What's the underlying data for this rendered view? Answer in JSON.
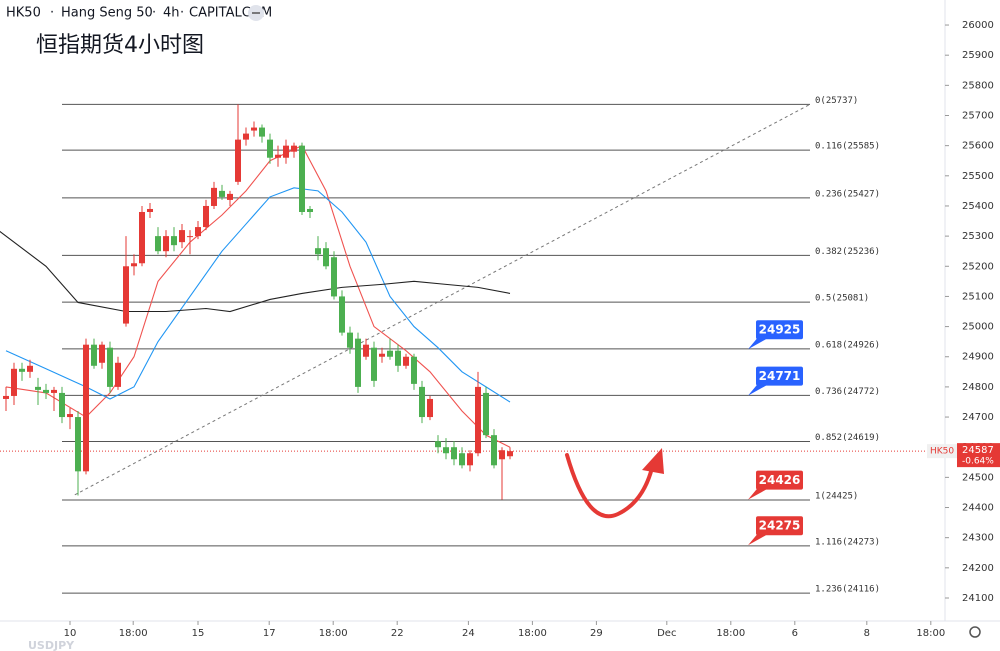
{
  "header": {
    "symbol": "HK50",
    "name": "Hang Seng 50",
    "interval": "4h",
    "source": "CAPITALCOM"
  },
  "chart_data": {
    "type": "candlestick",
    "title": "恒指期货4小时图",
    "watermark": "USDJPY",
    "up_color": "#e53935",
    "down_color": "#4caf50",
    "ylim": [
      24027,
      26083
    ],
    "yticks": [
      24100,
      24200,
      24300,
      24400,
      24500,
      24600,
      24700,
      24800,
      24900,
      25000,
      25100,
      25200,
      25300,
      25400,
      25500,
      25600,
      25700,
      25800,
      25900,
      26000
    ],
    "xlim": [
      -0.75,
      117.375
    ],
    "xticks": [
      {
        "value": 8,
        "label": "10"
      },
      {
        "value": 15.9,
        "label": "18:00"
      },
      {
        "value": 24,
        "label": "15"
      },
      {
        "value": 32.9,
        "label": "17"
      },
      {
        "value": 40.9,
        "label": "18:00"
      },
      {
        "value": 48.9,
        "label": "22"
      },
      {
        "value": 57.8,
        "label": "24"
      },
      {
        "value": 65.8,
        "label": "18:00"
      },
      {
        "value": 73.8,
        "label": "29"
      },
      {
        "value": 82.6,
        "label": "Dec"
      },
      {
        "value": 90.6,
        "label": "18:00"
      },
      {
        "value": 98.6,
        "label": "6"
      },
      {
        "value": 107.6,
        "label": "8"
      },
      {
        "value": 115.6,
        "label": "18:00"
      }
    ],
    "candles": {
      "x": [
        0,
        1,
        2,
        3,
        4,
        5,
        6,
        7,
        8,
        9,
        10,
        11,
        12,
        13,
        14,
        15,
        16,
        17,
        18,
        19,
        20,
        21,
        22,
        23,
        24,
        25,
        26,
        27,
        28,
        29,
        30,
        31,
        32,
        33,
        34,
        35,
        36,
        37,
        38,
        39,
        40,
        41,
        42,
        43,
        44,
        45,
        46,
        47,
        48,
        49,
        50,
        51,
        52,
        53,
        54,
        55,
        56,
        57,
        58,
        59,
        60,
        61,
        62,
        63
      ],
      "open": [
        24760,
        24770,
        24860,
        24850,
        24800,
        24790,
        24780,
        24780,
        24700,
        24700,
        24520,
        24940,
        24880,
        24930,
        24800,
        25010,
        25200,
        25210,
        25380,
        25300,
        25250,
        25300,
        25280,
        25300,
        25300,
        25330,
        25400,
        25450,
        25420,
        25480,
        25620,
        25650,
        25660,
        25620,
        25560,
        25560,
        25580,
        25600,
        25390,
        25260,
        25260,
        25230,
        25100,
        24980,
        24960,
        24900,
        24930,
        24900,
        24920,
        24920,
        24870,
        24900,
        24800,
        24700,
        24620,
        24600,
        24600,
        24580,
        24540,
        24580,
        24780,
        24640,
        24560,
        24570
      ],
      "high": [
        24800,
        24880,
        24880,
        24890,
        24830,
        24810,
        24800,
        24800,
        24730,
        24720,
        24960,
        24960,
        24950,
        24950,
        24900,
        25300,
        25240,
        25400,
        25410,
        25330,
        25320,
        25330,
        25340,
        25320,
        25350,
        25420,
        25480,
        25470,
        25450,
        25737,
        25660,
        25680,
        25670,
        25640,
        25600,
        25620,
        25610,
        25610,
        25400,
        25300,
        25280,
        25250,
        25120,
        25000,
        24980,
        24960,
        24950,
        24930,
        24960,
        24940,
        24910,
        24910,
        24820,
        24770,
        24640,
        24630,
        24620,
        24600,
        24590,
        24850,
        24800,
        24660,
        24600,
        24600
      ],
      "low": [
        24720,
        24740,
        24820,
        24830,
        24740,
        24760,
        24720,
        24680,
        24660,
        24440,
        24510,
        24860,
        24860,
        24780,
        24790,
        25000,
        25170,
        25200,
        25360,
        25240,
        25230,
        25250,
        25260,
        25240,
        25290,
        25320,
        25390,
        25420,
        25400,
        25470,
        25600,
        25630,
        25610,
        25540,
        25530,
        25540,
        25560,
        25370,
        25360,
        25220,
        25190,
        25090,
        24970,
        24910,
        24780,
        24890,
        24800,
        24880,
        24890,
        24850,
        24860,
        24790,
        24680,
        24690,
        24580,
        24560,
        24540,
        24530,
        24520,
        24570,
        24630,
        24530,
        24426,
        24560
      ],
      "close": [
        24770,
        24860,
        24850,
        24870,
        24790,
        24780,
        24790,
        24700,
        24710,
        24520,
        24940,
        24870,
        24940,
        24800,
        24880,
        25200,
        25210,
        25380,
        25390,
        25250,
        25300,
        25270,
        25320,
        25300,
        25330,
        25400,
        25460,
        25430,
        25440,
        25620,
        25640,
        25660,
        25630,
        25560,
        25570,
        25600,
        25600,
        25380,
        25380,
        25240,
        25200,
        25100,
        24980,
        24930,
        24800,
        24940,
        24820,
        24910,
        24900,
        24870,
        24900,
        24810,
        24700,
        24760,
        24600,
        24580,
        24560,
        24540,
        24580,
        24800,
        24640,
        24540,
        24590,
        24587
      ]
    },
    "series": [
      {
        "color": "#f05350",
        "x": [
          0,
          5,
          10,
          13,
          16,
          19,
          23,
          27,
          30,
          33,
          37,
          40,
          43,
          46,
          50,
          53,
          57,
          60,
          63
        ],
        "values": [
          24800,
          24780,
          24700,
          24780,
          24900,
          25150,
          25280,
          25370,
          25450,
          25550,
          25600,
          25450,
          25200,
          25000,
          24920,
          24850,
          24720,
          24640,
          24600
        ]
      },
      {
        "color": "#2196f3",
        "x": [
          0,
          5,
          10,
          13,
          16,
          19,
          23,
          27,
          30,
          33,
          36,
          39,
          42,
          45,
          48,
          51,
          54,
          57,
          60,
          63
        ],
        "values": [
          24920,
          24860,
          24800,
          24760,
          24800,
          24950,
          25100,
          25250,
          25340,
          25430,
          25460,
          25450,
          25380,
          25280,
          25100,
          25000,
          24930,
          24850,
          24800,
          24750
        ]
      },
      {
        "color": "#222222",
        "x": [
          -1,
          5,
          9,
          15,
          20,
          25,
          28,
          33,
          37,
          42,
          47,
          51,
          55,
          59,
          63
        ],
        "values": [
          25320,
          25200,
          25080,
          25050,
          25050,
          25060,
          25050,
          25090,
          25110,
          25130,
          25140,
          25150,
          25140,
          25130,
          25110
        ]
      }
    ],
    "fib_levels": [
      {
        "value": 25737,
        "label": "0(25737)"
      },
      {
        "value": 25585,
        "label": "0.116(25585)"
      },
      {
        "value": 25427,
        "label": "0.236(25427)"
      },
      {
        "value": 25236,
        "label": "0.382(25236)"
      },
      {
        "value": 25081,
        "label": "0.5(25081)"
      },
      {
        "value": 24926,
        "label": "0.618(24926)"
      },
      {
        "value": 24772,
        "label": "0.736(24772)"
      },
      {
        "value": 24619,
        "label": "0.852(24619)"
      },
      {
        "value": 24425,
        "label": "1(24425)"
      },
      {
        "value": 24273,
        "label": "1.116(24273)"
      },
      {
        "value": 24116,
        "label": "1.236(24116)"
      }
    ],
    "trendline": {
      "x": [
        8.6,
        100.5
      ],
      "values": [
        24442,
        25737
      ]
    },
    "price_tags": [
      {
        "price": 24925,
        "color": "#2962ff"
      },
      {
        "price": 24771,
        "color": "#2962ff"
      },
      {
        "price": 24426,
        "color": "#e53935"
      },
      {
        "price": 24275,
        "color": "#e53935"
      }
    ],
    "last": {
      "symbol": "HK50",
      "price": 24587,
      "change": "-0.64%"
    }
  }
}
